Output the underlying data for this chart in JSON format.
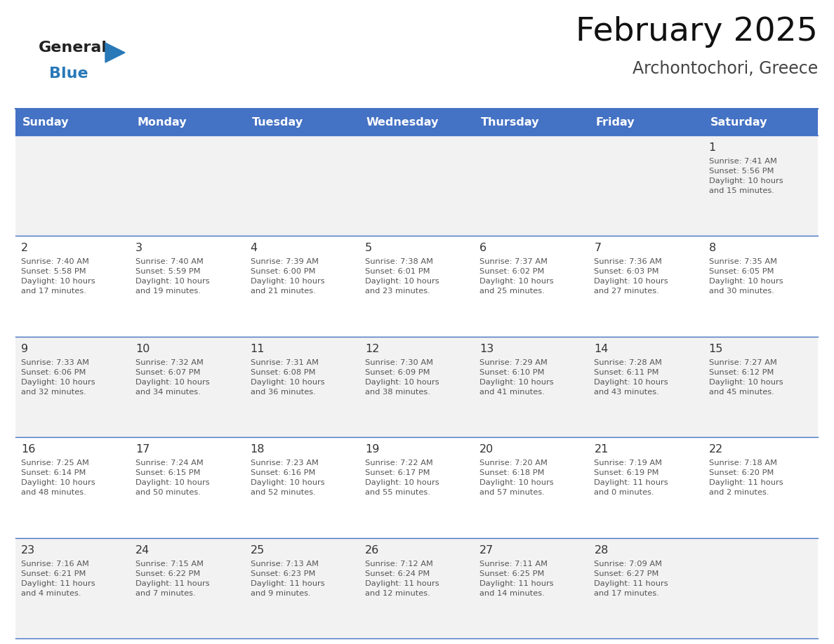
{
  "title": "February 2025",
  "subtitle": "Archontochori, Greece",
  "days_of_week": [
    "Sunday",
    "Monday",
    "Tuesday",
    "Wednesday",
    "Thursday",
    "Friday",
    "Saturday"
  ],
  "header_bg": "#4472C4",
  "header_text": "#FFFFFF",
  "cell_bg_odd": "#F2F2F2",
  "cell_bg_even": "#FFFFFF",
  "border_color": "#4472C4",
  "day_num_color": "#333333",
  "text_color": "#555555",
  "logo_general_color": "#222222",
  "logo_blue_color": "#2979B8",
  "weeks": [
    [
      {
        "day": null,
        "info": null
      },
      {
        "day": null,
        "info": null
      },
      {
        "day": null,
        "info": null
      },
      {
        "day": null,
        "info": null
      },
      {
        "day": null,
        "info": null
      },
      {
        "day": null,
        "info": null
      },
      {
        "day": 1,
        "info": "Sunrise: 7:41 AM\nSunset: 5:56 PM\nDaylight: 10 hours\nand 15 minutes."
      }
    ],
    [
      {
        "day": 2,
        "info": "Sunrise: 7:40 AM\nSunset: 5:58 PM\nDaylight: 10 hours\nand 17 minutes."
      },
      {
        "day": 3,
        "info": "Sunrise: 7:40 AM\nSunset: 5:59 PM\nDaylight: 10 hours\nand 19 minutes."
      },
      {
        "day": 4,
        "info": "Sunrise: 7:39 AM\nSunset: 6:00 PM\nDaylight: 10 hours\nand 21 minutes."
      },
      {
        "day": 5,
        "info": "Sunrise: 7:38 AM\nSunset: 6:01 PM\nDaylight: 10 hours\nand 23 minutes."
      },
      {
        "day": 6,
        "info": "Sunrise: 7:37 AM\nSunset: 6:02 PM\nDaylight: 10 hours\nand 25 minutes."
      },
      {
        "day": 7,
        "info": "Sunrise: 7:36 AM\nSunset: 6:03 PM\nDaylight: 10 hours\nand 27 minutes."
      },
      {
        "day": 8,
        "info": "Sunrise: 7:35 AM\nSunset: 6:05 PM\nDaylight: 10 hours\nand 30 minutes."
      }
    ],
    [
      {
        "day": 9,
        "info": "Sunrise: 7:33 AM\nSunset: 6:06 PM\nDaylight: 10 hours\nand 32 minutes."
      },
      {
        "day": 10,
        "info": "Sunrise: 7:32 AM\nSunset: 6:07 PM\nDaylight: 10 hours\nand 34 minutes."
      },
      {
        "day": 11,
        "info": "Sunrise: 7:31 AM\nSunset: 6:08 PM\nDaylight: 10 hours\nand 36 minutes."
      },
      {
        "day": 12,
        "info": "Sunrise: 7:30 AM\nSunset: 6:09 PM\nDaylight: 10 hours\nand 38 minutes."
      },
      {
        "day": 13,
        "info": "Sunrise: 7:29 AM\nSunset: 6:10 PM\nDaylight: 10 hours\nand 41 minutes."
      },
      {
        "day": 14,
        "info": "Sunrise: 7:28 AM\nSunset: 6:11 PM\nDaylight: 10 hours\nand 43 minutes."
      },
      {
        "day": 15,
        "info": "Sunrise: 7:27 AM\nSunset: 6:12 PM\nDaylight: 10 hours\nand 45 minutes."
      }
    ],
    [
      {
        "day": 16,
        "info": "Sunrise: 7:25 AM\nSunset: 6:14 PM\nDaylight: 10 hours\nand 48 minutes."
      },
      {
        "day": 17,
        "info": "Sunrise: 7:24 AM\nSunset: 6:15 PM\nDaylight: 10 hours\nand 50 minutes."
      },
      {
        "day": 18,
        "info": "Sunrise: 7:23 AM\nSunset: 6:16 PM\nDaylight: 10 hours\nand 52 minutes."
      },
      {
        "day": 19,
        "info": "Sunrise: 7:22 AM\nSunset: 6:17 PM\nDaylight: 10 hours\nand 55 minutes."
      },
      {
        "day": 20,
        "info": "Sunrise: 7:20 AM\nSunset: 6:18 PM\nDaylight: 10 hours\nand 57 minutes."
      },
      {
        "day": 21,
        "info": "Sunrise: 7:19 AM\nSunset: 6:19 PM\nDaylight: 11 hours\nand 0 minutes."
      },
      {
        "day": 22,
        "info": "Sunrise: 7:18 AM\nSunset: 6:20 PM\nDaylight: 11 hours\nand 2 minutes."
      }
    ],
    [
      {
        "day": 23,
        "info": "Sunrise: 7:16 AM\nSunset: 6:21 PM\nDaylight: 11 hours\nand 4 minutes."
      },
      {
        "day": 24,
        "info": "Sunrise: 7:15 AM\nSunset: 6:22 PM\nDaylight: 11 hours\nand 7 minutes."
      },
      {
        "day": 25,
        "info": "Sunrise: 7:13 AM\nSunset: 6:23 PM\nDaylight: 11 hours\nand 9 minutes."
      },
      {
        "day": 26,
        "info": "Sunrise: 7:12 AM\nSunset: 6:24 PM\nDaylight: 11 hours\nand 12 minutes."
      },
      {
        "day": 27,
        "info": "Sunrise: 7:11 AM\nSunset: 6:25 PM\nDaylight: 11 hours\nand 14 minutes."
      },
      {
        "day": 28,
        "info": "Sunrise: 7:09 AM\nSunset: 6:27 PM\nDaylight: 11 hours\nand 17 minutes."
      },
      {
        "day": null,
        "info": null
      }
    ]
  ]
}
